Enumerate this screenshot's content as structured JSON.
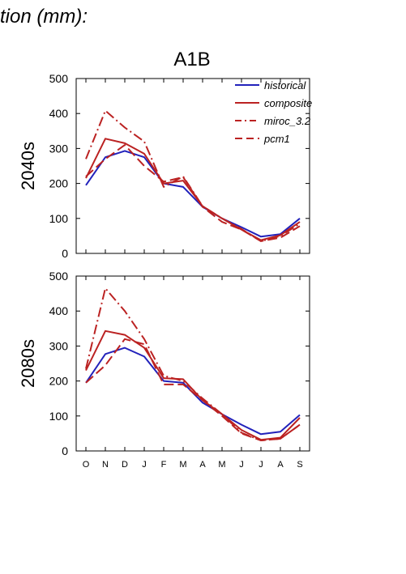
{
  "header_text": "tion (mm):",
  "scenario_title": "A1B",
  "colors": {
    "historical": "#2222bb",
    "scenario": "#bb2222"
  },
  "chart_data": [
    {
      "type": "line",
      "panel_label": "2040s",
      "xlabel": "",
      "ylabel": "",
      "categories": [
        "O",
        "N",
        "D",
        "J",
        "F",
        "M",
        "A",
        "M",
        "J",
        "J",
        "A",
        "S"
      ],
      "ylim": [
        0,
        500
      ],
      "yticks": [
        0,
        100,
        200,
        300,
        400,
        500
      ],
      "legend": "top-right",
      "series": [
        {
          "name": "historical",
          "style": "solid",
          "color": "#2222bb",
          "values": [
            195,
            275,
            293,
            275,
            200,
            190,
            133,
            100,
            75,
            48,
            55,
            100
          ]
        },
        {
          "name": "composite",
          "style": "solid",
          "color": "#bb2222",
          "values": [
            215,
            328,
            315,
            285,
            200,
            208,
            135,
            100,
            68,
            38,
            52,
            90
          ]
        },
        {
          "name": "miroc_3.2",
          "style": "dashdot",
          "color": "#bb2222",
          "values": [
            270,
            408,
            360,
            320,
            190,
            220,
            135,
            100,
            70,
            35,
            50,
            85
          ]
        },
        {
          "name": "pcm1",
          "style": "dash",
          "color": "#bb2222",
          "values": [
            220,
            270,
            310,
            250,
            205,
            218,
            133,
            90,
            68,
            35,
            45,
            78
          ]
        }
      ]
    },
    {
      "type": "line",
      "panel_label": "2080s",
      "xlabel": "",
      "ylabel": "",
      "categories": [
        "O",
        "N",
        "D",
        "J",
        "F",
        "M",
        "A",
        "M",
        "J",
        "J",
        "A",
        "S"
      ],
      "ylim": [
        0,
        500
      ],
      "yticks": [
        0,
        100,
        200,
        300,
        400,
        500
      ],
      "series": [
        {
          "name": "historical",
          "style": "solid",
          "color": "#2222bb",
          "values": [
            195,
            277,
            295,
            270,
            200,
            195,
            138,
            105,
            75,
            48,
            55,
            103
          ]
        },
        {
          "name": "composite",
          "style": "solid",
          "color": "#bb2222",
          "values": [
            230,
            343,
            332,
            295,
            208,
            205,
            145,
            105,
            60,
            32,
            38,
            95
          ]
        },
        {
          "name": "miroc_3.2",
          "style": "dashdot",
          "color": "#bb2222",
          "values": [
            235,
            465,
            400,
            320,
            215,
            200,
            150,
            105,
            52,
            30,
            35,
            75
          ]
        },
        {
          "name": "pcm1",
          "style": "dash",
          "color": "#bb2222",
          "values": [
            195,
            245,
            320,
            305,
            190,
            190,
            145,
            100,
            50,
            30,
            35,
            75
          ]
        }
      ]
    }
  ]
}
